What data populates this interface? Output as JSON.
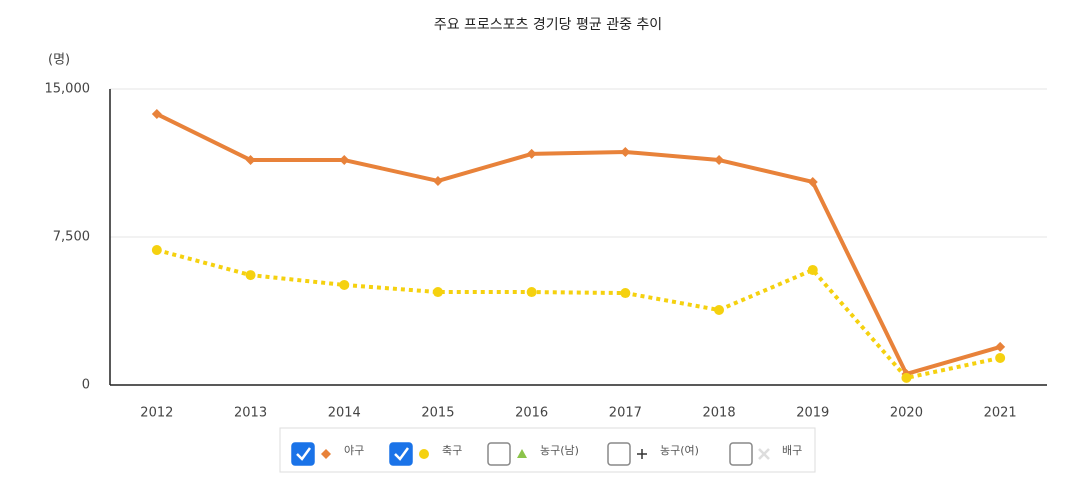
{
  "chart_data": {
    "type": "line",
    "title": "주요 프로스포츠 경기당 평균 관중 추이",
    "y_label": "(명)",
    "categories": [
      "2012",
      "2013",
      "2014",
      "2015",
      "2016",
      "2017",
      "2018",
      "2019",
      "2020",
      "2021"
    ],
    "series": [
      {
        "name": "야구",
        "color": "#e8823a",
        "marker": "diamond",
        "style": "solid",
        "checked": true,
        "values": [
          13730,
          11400,
          11400,
          10340,
          11710,
          11810,
          11400,
          10290,
          560,
          1930
        ]
      },
      {
        "name": "축구",
        "color": "#f5d10f",
        "marker": "circle",
        "style": "dotted",
        "checked": true,
        "values": [
          6840,
          5570,
          5070,
          4710,
          4710,
          4660,
          3800,
          5830,
          360,
          1370
        ]
      }
    ],
    "hidden_series": [
      {
        "name": "농구(남)",
        "color": "#8bc34a",
        "marker": "triangle",
        "checked": false
      },
      {
        "name": "농구(여)",
        "color": "#333333",
        "marker": "plus",
        "checked": false
      },
      {
        "name": "배구",
        "color": "#dddddd",
        "marker": "cross",
        "checked": false
      }
    ],
    "ylim": [
      0,
      15000
    ],
    "yticks": [
      0,
      {
        "value": 7500,
        "label": "7,500"
      },
      {
        "value": 15000,
        "label": "15,000"
      }
    ],
    "grid": true
  }
}
